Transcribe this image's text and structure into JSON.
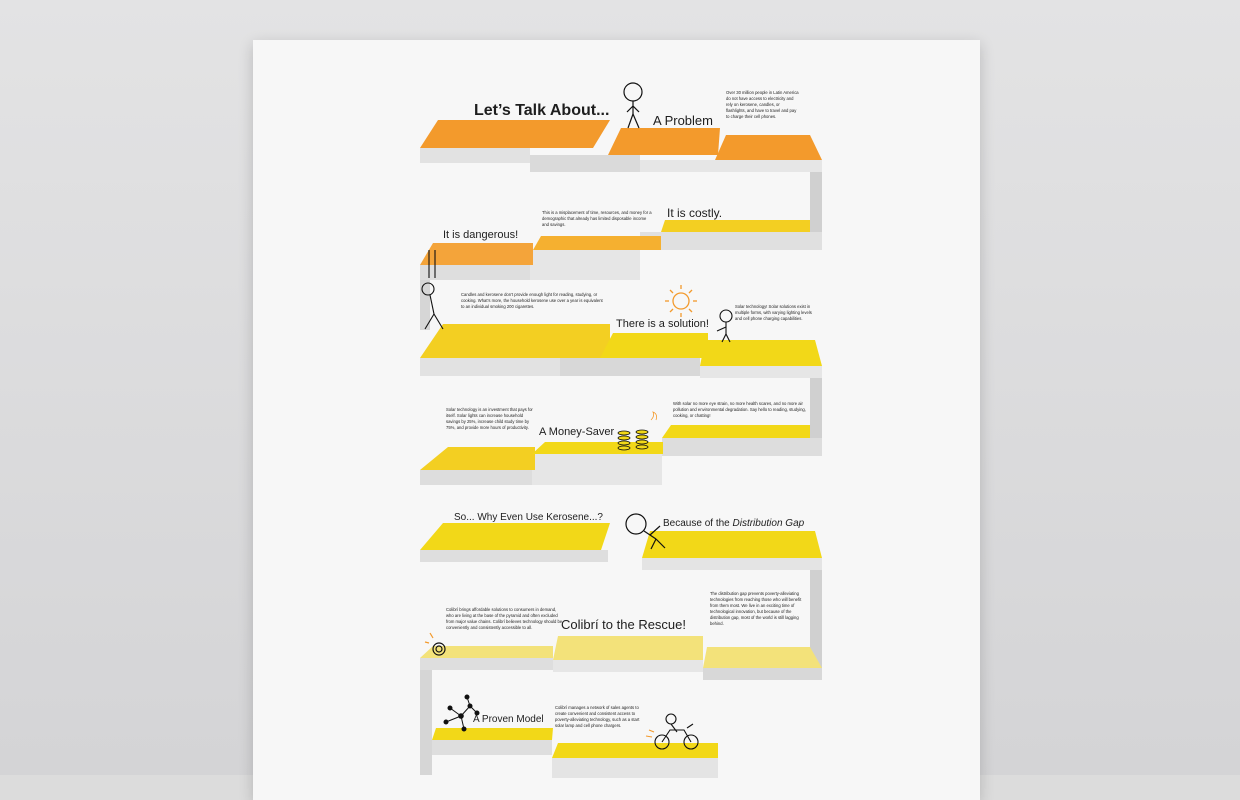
{
  "poster": {
    "title": "Let’s Talk About...",
    "headings": {
      "problem": "A Problem",
      "costly": "It is costly.",
      "dangerous": "It is dangerous!",
      "solution": "There is a solution!",
      "money_saver": "A Money-Saver",
      "kerosene": "So... Why Even Use Kerosene...?",
      "distribution_prefix": "Because of the ",
      "distribution_italic": "Distribution Gap",
      "rescue": "Colibrí to the Rescue!",
      "proven": "A Proven Model"
    },
    "paragraphs": {
      "problem": "Over 30 million people in Latin America do not have access to electricity and rely on kerosene, candles, or flashlights, and have to travel and pay to charge their cell phones.",
      "costly": "This is a misplacement of time, resources, and money for a demographic that already has limited disposable income and savings.",
      "dangerous": "Candles and kerosene don’t provide enough light for reading, studying, or cooking. What’s more, the household kerosene use over a year is equivalent to an individual smoking 200 cigarettes.",
      "solution": "Solar technology! Solar solutions exist in multiple forms, with varying lighting levels and cell phone charging capabilities.",
      "money_saver": "Solar technology is an investment that pays for itself. Solar lights can increase household savings by 25%, increase child study time by 75%, and provide more hours of productivity.",
      "health": "With solar no more eye strain, no more health scares, and no more air pollution and environmental degradation. Say hello to reading, studying, cooking, or chatting!",
      "rescue": "Colibrí brings affordable solutions to consumers in demand, who are living at the base of the pyramid and often excluded from major value chains. Colibrí believes technology should be conveniently and consistently accessible to all.",
      "distribution": "The distribution gap prevents poverty-alleviating technologies from reaching those who will benefit from them most. We live in an exciting time of technological innovation, but because of the distribution gap, most of the world is still lagging behind.",
      "proven": "Colibrí manages a network of sales agents to create convenient and consistent access to poverty-alleviating technology, such as a start solar lamp and cell phone chargers."
    },
    "colors": {
      "orange": "#f39a2c",
      "orange_light": "#f4a43a",
      "yellow": "#f3cf22",
      "yellow_bright": "#f2d818",
      "yellow_pale": "#f3e27a",
      "step_side": "#d2d2d2",
      "step_front": "#e4e4e4"
    },
    "icons": [
      "stick-figure-icon",
      "hanging-figure-icon",
      "sun-icon",
      "coin-stacks-icon",
      "network-icon",
      "motorbike-icon"
    ]
  }
}
